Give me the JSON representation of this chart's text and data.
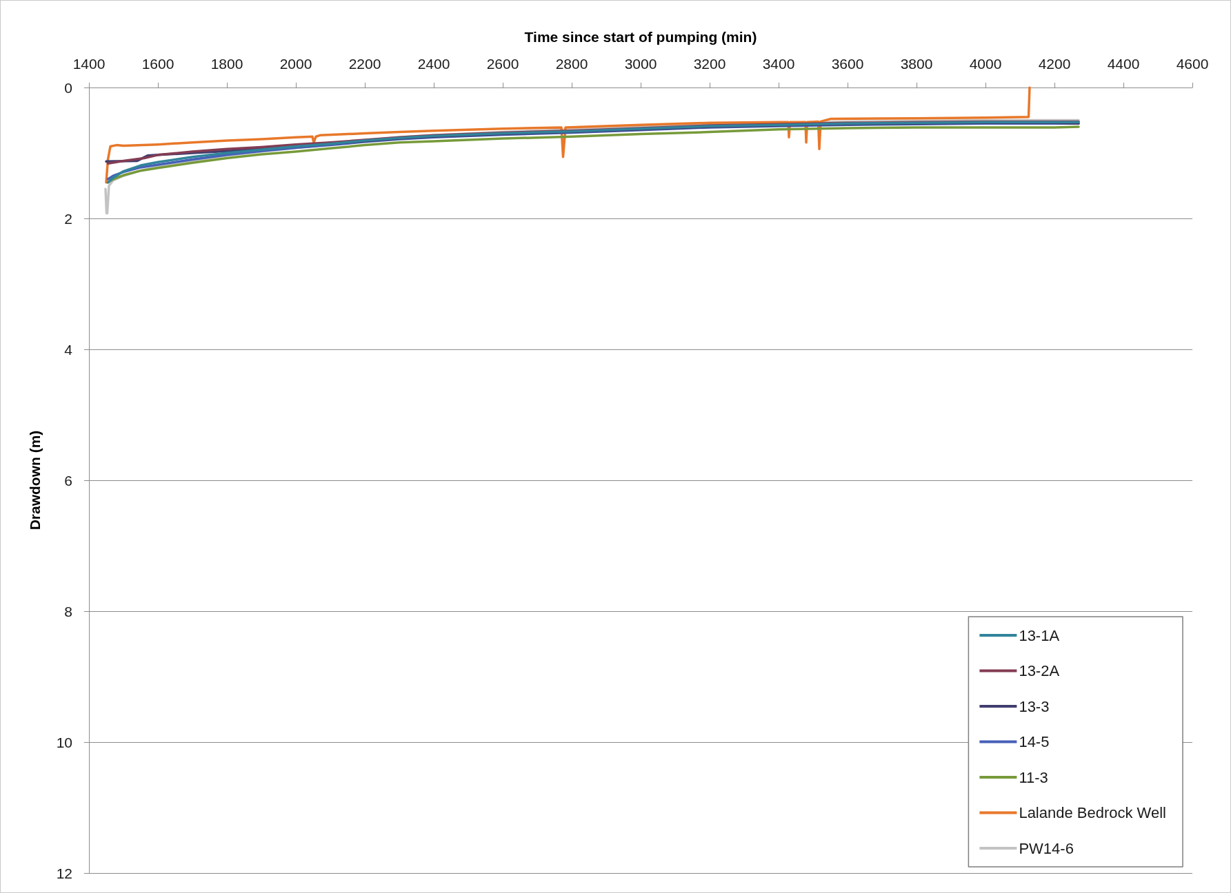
{
  "chart_data": {
    "type": "line",
    "xlabel": "Time since start of pumping (min)",
    "ylabel": "Drawdown (m)",
    "xlim": [
      1400,
      4600
    ],
    "xticks": [
      1400,
      1600,
      1800,
      2000,
      2200,
      2400,
      2600,
      2800,
      3000,
      3200,
      3400,
      3600,
      3800,
      4000,
      4200,
      4400,
      4600
    ],
    "ylim": [
      12,
      0
    ],
    "yticks": [
      0,
      2,
      4,
      6,
      8,
      10,
      12
    ],
    "grid": "y",
    "legend": "bottom right",
    "marker": "none",
    "line_style": "solid",
    "series": [
      {
        "name": "13-1A",
        "color": "#31849b",
        "x": [
          1455,
          1470,
          1500,
          1550,
          1600,
          1700,
          1800,
          1900,
          2000,
          2100,
          2200,
          2300,
          2400,
          2600,
          2800,
          3000,
          3200,
          3400,
          3600,
          3800,
          4000,
          4200,
          4270
        ],
        "values": [
          1.45,
          1.38,
          1.28,
          1.19,
          1.14,
          1.06,
          1.0,
          0.95,
          0.9,
          0.86,
          0.81,
          0.77,
          0.74,
          0.7,
          0.67,
          0.63,
          0.59,
          0.57,
          0.55,
          0.54,
          0.53,
          0.53,
          0.53
        ]
      },
      {
        "name": "13-2A",
        "color": "#833c53",
        "x": [
          1455,
          1500,
          1560,
          1600,
          1700,
          1800,
          1900,
          2000,
          2100,
          2200,
          2300,
          2400,
          2600,
          2800,
          3000,
          3200,
          3400,
          3600,
          3800,
          4000,
          4200,
          4270
        ],
        "values": [
          1.16,
          1.12,
          1.08,
          1.03,
          0.98,
          0.94,
          0.91,
          0.87,
          0.84,
          0.8,
          0.76,
          0.73,
          0.69,
          0.66,
          0.62,
          0.58,
          0.56,
          0.54,
          0.53,
          0.52,
          0.52,
          0.52
        ]
      },
      {
        "name": "13-3",
        "color": "#403d6e",
        "x": [
          1450,
          1540,
          1570,
          1600,
          1700,
          1800,
          1900,
          2000,
          2100,
          2200,
          2300,
          2400,
          2600,
          2800,
          3000,
          3200,
          3400,
          3600,
          3800,
          4000,
          4200,
          4270
        ],
        "values": [
          1.13,
          1.12,
          1.04,
          1.03,
          1.0,
          0.97,
          0.94,
          0.9,
          0.86,
          0.82,
          0.78,
          0.75,
          0.71,
          0.68,
          0.64,
          0.6,
          0.58,
          0.56,
          0.55,
          0.54,
          0.54,
          0.55
        ]
      },
      {
        "name": "14-5",
        "color": "#4660b8",
        "x": [
          1455,
          1470,
          1500,
          1550,
          1600,
          1700,
          1800,
          1900,
          2000,
          2100,
          2200,
          2300,
          2400,
          2600,
          2800,
          3000,
          3200,
          3400,
          3600,
          3800,
          4000,
          4200,
          4270
        ],
        "values": [
          1.4,
          1.35,
          1.29,
          1.22,
          1.18,
          1.1,
          1.03,
          0.97,
          0.92,
          0.88,
          0.83,
          0.79,
          0.76,
          0.72,
          0.69,
          0.65,
          0.61,
          0.59,
          0.57,
          0.56,
          0.55,
          0.55,
          0.55
        ]
      },
      {
        "name": "11-3",
        "color": "#779a3a",
        "x": [
          1455,
          1470,
          1500,
          1550,
          1600,
          1700,
          1800,
          1900,
          2000,
          2100,
          2200,
          2300,
          2400,
          2600,
          2800,
          3000,
          3200,
          3400,
          3600,
          3800,
          4000,
          4200,
          4270
        ],
        "values": [
          1.45,
          1.4,
          1.34,
          1.27,
          1.23,
          1.15,
          1.08,
          1.02,
          0.98,
          0.93,
          0.88,
          0.84,
          0.82,
          0.78,
          0.75,
          0.71,
          0.68,
          0.64,
          0.62,
          0.61,
          0.61,
          0.61,
          0.6
        ]
      },
      {
        "name": "Lalande Bedrock Well",
        "color": "#e8782a",
        "x": [
          1450,
          1455,
          1462,
          1480,
          1500,
          1600,
          1700,
          1800,
          1900,
          2000,
          2048,
          2052,
          2058,
          2070,
          2200,
          2300,
          2400,
          2600,
          2770,
          2775,
          2782,
          3000,
          3200,
          3400,
          3428,
          3430,
          3433,
          3478,
          3480,
          3483,
          3515,
          3518,
          3522,
          3550,
          3800,
          4000,
          4125,
          4128
        ],
        "values": [
          1.45,
          1.1,
          0.9,
          0.88,
          0.89,
          0.87,
          0.84,
          0.81,
          0.79,
          0.76,
          0.75,
          0.84,
          0.75,
          0.73,
          0.7,
          0.68,
          0.66,
          0.63,
          0.61,
          1.06,
          0.61,
          0.57,
          0.54,
          0.53,
          0.53,
          0.76,
          0.53,
          0.53,
          0.84,
          0.53,
          0.52,
          0.94,
          0.52,
          0.48,
          0.47,
          0.46,
          0.45,
          0
        ]
      },
      {
        "name": "PW14-6",
        "color": "#c3c3c3",
        "x": [
          1448,
          1451,
          1453,
          1458,
          1470,
          1500,
          1550,
          1600,
          1700,
          1800,
          1900,
          2000,
          2100,
          2200,
          2300,
          2400,
          2600,
          2800,
          3000,
          3200,
          3400,
          3600,
          3800,
          4000,
          4200,
          4270
        ],
        "values": [
          1.55,
          1.92,
          1.92,
          1.5,
          1.42,
          1.35,
          1.27,
          1.21,
          1.12,
          1.04,
          0.98,
          0.92,
          0.87,
          0.81,
          0.76,
          0.73,
          0.68,
          0.64,
          0.6,
          0.56,
          0.54,
          0.52,
          0.51,
          0.5,
          0.5,
          0.5
        ]
      }
    ]
  }
}
